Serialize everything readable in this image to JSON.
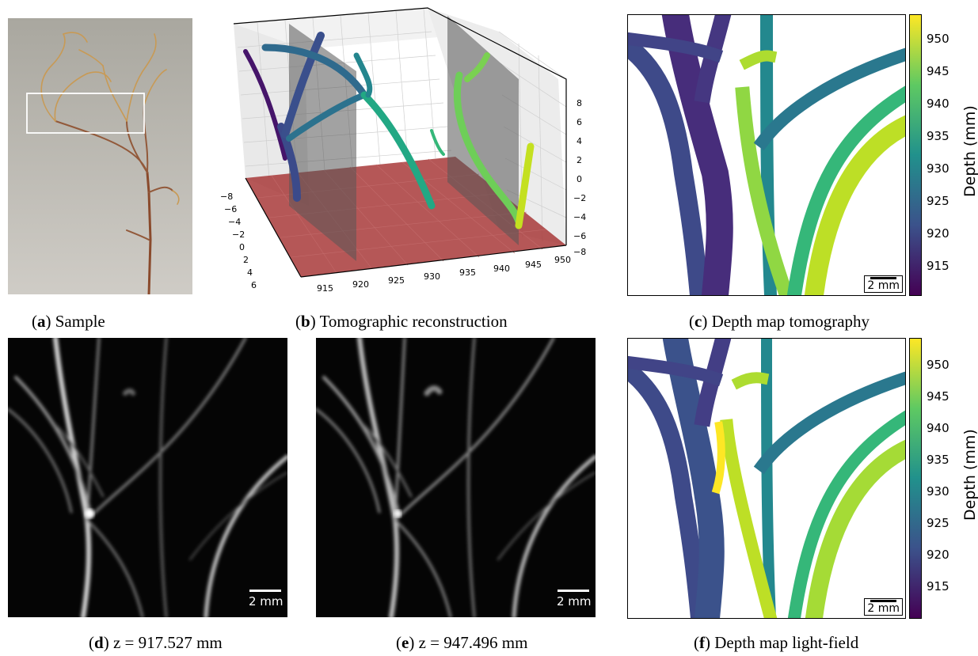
{
  "panels": {
    "a": {
      "letter": "a",
      "caption": "Sample"
    },
    "b": {
      "letter": "b",
      "caption": "Tomographic reconstruction"
    },
    "c": {
      "letter": "c",
      "caption": "Depth map tomography"
    },
    "d": {
      "letter": "d",
      "caption": "z = 917.527 mm"
    },
    "e": {
      "letter": "e",
      "caption": "z = 947.496 mm"
    },
    "f": {
      "letter": "f",
      "caption": "Depth map light-field"
    }
  },
  "scale_bar": {
    "label": "2 mm"
  },
  "colorbar": {
    "label": "Depth (mm)",
    "ticks": [
      "950",
      "945",
      "940",
      "935",
      "930",
      "925",
      "920",
      "915"
    ],
    "colormap": "viridis"
  },
  "axes3d": {
    "x_ticks": [
      "915",
      "920",
      "925",
      "930",
      "935",
      "940",
      "945",
      "950"
    ],
    "y_ticks": [
      "−8",
      "−6",
      "−4",
      "−2",
      "0",
      "2",
      "4",
      "6"
    ],
    "z_ticks": [
      "8",
      "6",
      "4",
      "2",
      "0",
      "−2",
      "−4",
      "−6",
      "−8"
    ],
    "floor_color": "#a83a3a"
  }
}
